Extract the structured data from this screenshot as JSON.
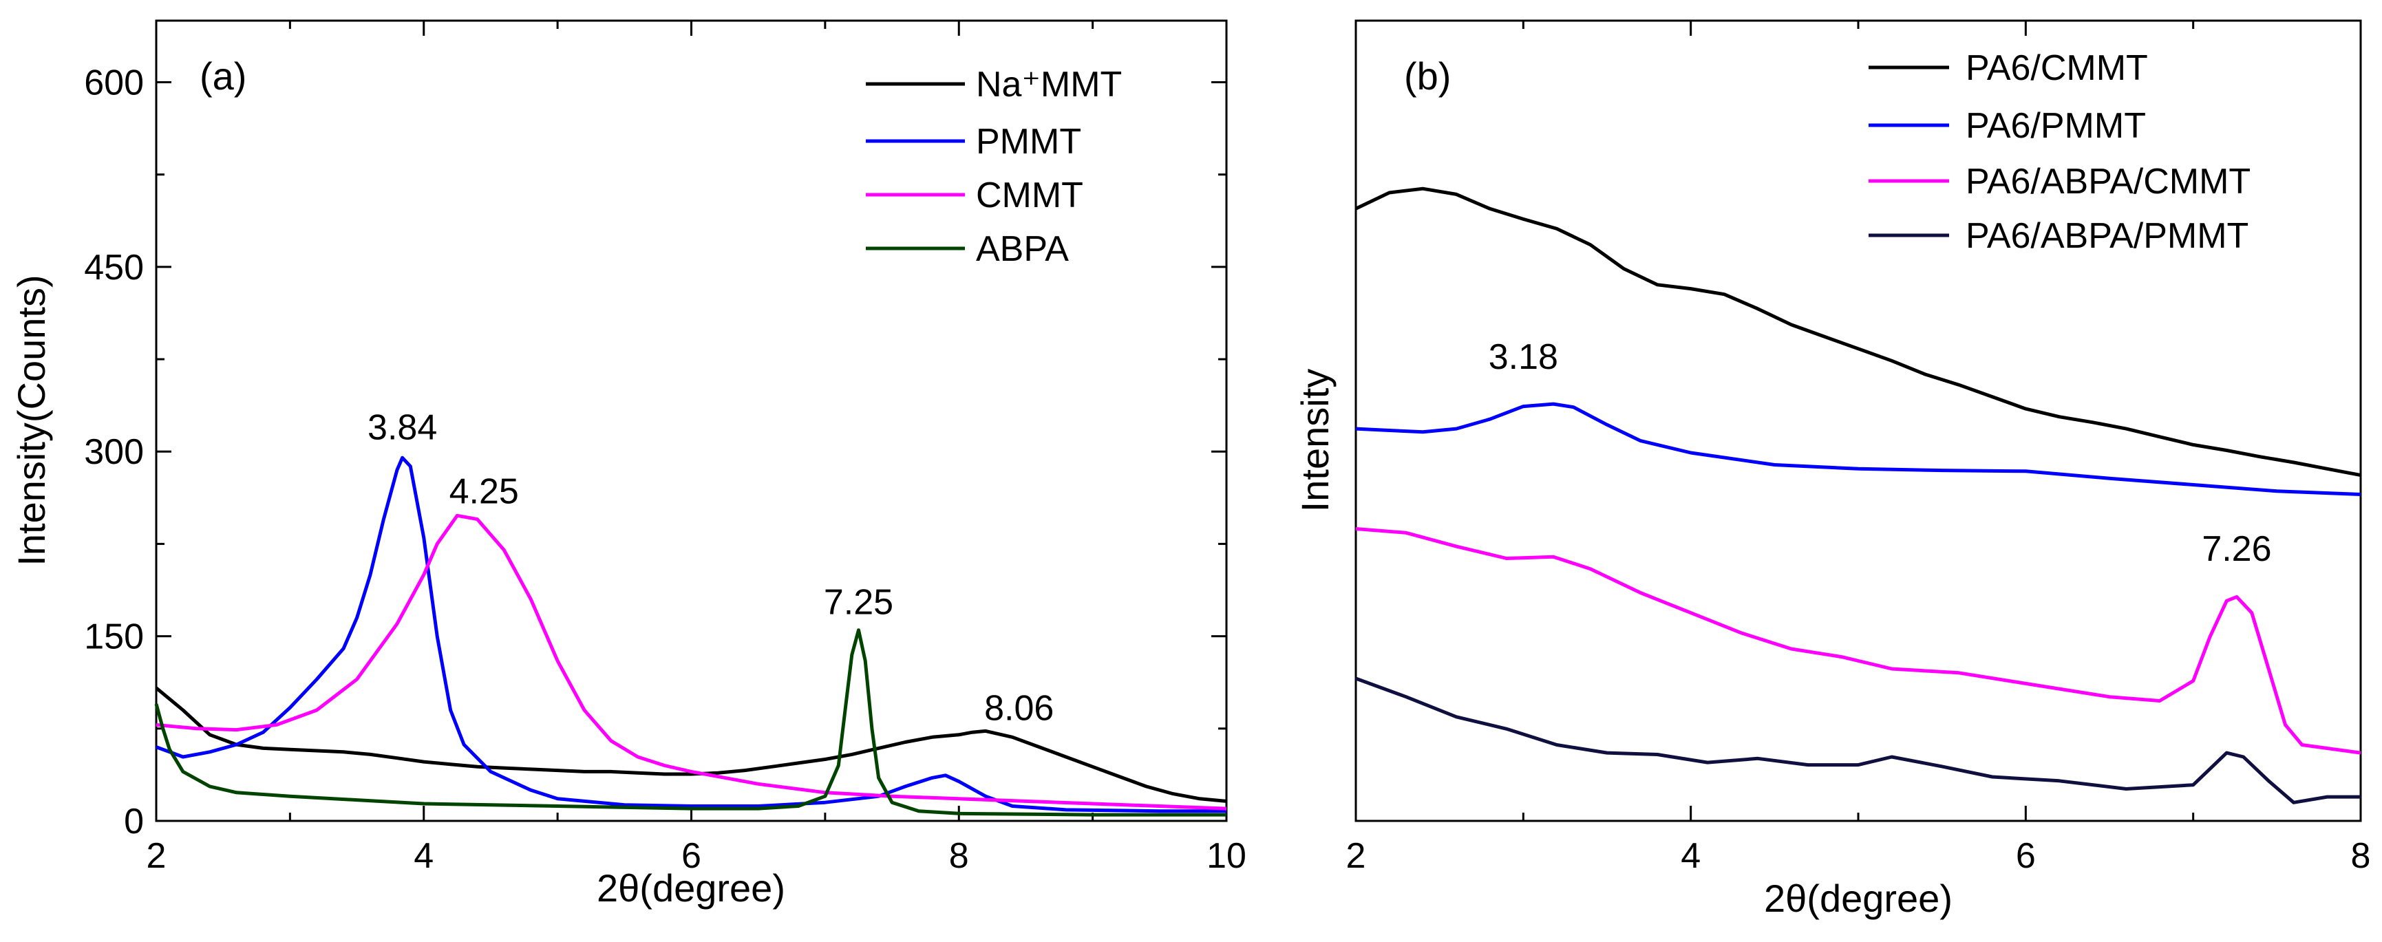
{
  "chart_data": [
    {
      "type": "line",
      "panel_label": "(a)",
      "xlabel": "2θ(degree)",
      "ylabel": "Intensity(Counts)",
      "xlim": [
        2,
        10
      ],
      "ylim": [
        0,
        650
      ],
      "xticks": [
        2,
        4,
        6,
        8,
        10
      ],
      "xtick_labels": [
        "2",
        "4",
        "6",
        "8",
        "10"
      ],
      "yticks": [
        0,
        150,
        300,
        450,
        600
      ],
      "ytick_labels": [
        "0",
        "150",
        "300",
        "450",
        "600"
      ],
      "grid": false,
      "legend_position": "top-right",
      "series": [
        {
          "name": "Na⁺MMT",
          "color": "#000000",
          "points": [
            [
              2,
              108
            ],
            [
              2.2,
              90
            ],
            [
              2.4,
              70
            ],
            [
              2.6,
              62
            ],
            [
              2.8,
              59
            ],
            [
              3,
              58
            ],
            [
              3.2,
              57
            ],
            [
              3.4,
              56
            ],
            [
              3.6,
              54
            ],
            [
              3.8,
              51
            ],
            [
              4,
              48
            ],
            [
              4.2,
              46
            ],
            [
              4.4,
              44
            ],
            [
              4.6,
              43
            ],
            [
              4.8,
              42
            ],
            [
              5,
              41
            ],
            [
              5.2,
              40
            ],
            [
              5.4,
              40
            ],
            [
              5.6,
              39
            ],
            [
              5.8,
              38
            ],
            [
              6,
              38
            ],
            [
              6.2,
              39
            ],
            [
              6.4,
              41
            ],
            [
              6.6,
              44
            ],
            [
              6.8,
              47
            ],
            [
              7,
              50
            ],
            [
              7.2,
              54
            ],
            [
              7.4,
              59
            ],
            [
              7.6,
              64
            ],
            [
              7.8,
              68
            ],
            [
              8,
              70
            ],
            [
              8.1,
              72
            ],
            [
              8.2,
              73
            ],
            [
              8.4,
              68
            ],
            [
              8.6,
              60
            ],
            [
              8.8,
              52
            ],
            [
              9,
              44
            ],
            [
              9.2,
              36
            ],
            [
              9.4,
              28
            ],
            [
              9.6,
              22
            ],
            [
              9.8,
              18
            ],
            [
              10,
              16
            ]
          ]
        },
        {
          "name": "PMMT",
          "color": "#0000ff",
          "points": [
            [
              2,
              60
            ],
            [
              2.2,
              52
            ],
            [
              2.4,
              56
            ],
            [
              2.6,
              62
            ],
            [
              2.8,
              72
            ],
            [
              3,
              92
            ],
            [
              3.2,
              115
            ],
            [
              3.4,
              140
            ],
            [
              3.5,
              165
            ],
            [
              3.6,
              200
            ],
            [
              3.7,
              245
            ],
            [
              3.8,
              285
            ],
            [
              3.84,
              295
            ],
            [
              3.9,
              288
            ],
            [
              4,
              230
            ],
            [
              4.1,
              150
            ],
            [
              4.2,
              90
            ],
            [
              4.3,
              62
            ],
            [
              4.5,
              40
            ],
            [
              4.8,
              25
            ],
            [
              5,
              18
            ],
            [
              5.5,
              13
            ],
            [
              6,
              12
            ],
            [
              6.5,
              12
            ],
            [
              7,
              15
            ],
            [
              7.4,
              20
            ],
            [
              7.6,
              28
            ],
            [
              7.8,
              35
            ],
            [
              7.9,
              37
            ],
            [
              8,
              32
            ],
            [
              8.2,
              20
            ],
            [
              8.4,
              12
            ],
            [
              8.8,
              9
            ],
            [
              9.5,
              8
            ],
            [
              10,
              8
            ]
          ]
        },
        {
          "name": "CMMT",
          "color": "#ff00ff",
          "points": [
            [
              2,
              78
            ],
            [
              2.3,
              75
            ],
            [
              2.6,
              74
            ],
            [
              2.9,
              78
            ],
            [
              3.2,
              90
            ],
            [
              3.5,
              115
            ],
            [
              3.8,
              160
            ],
            [
              4,
              200
            ],
            [
              4.1,
              225
            ],
            [
              4.25,
              248
            ],
            [
              4.4,
              245
            ],
            [
              4.6,
              220
            ],
            [
              4.8,
              180
            ],
            [
              5,
              130
            ],
            [
              5.2,
              90
            ],
            [
              5.4,
              65
            ],
            [
              5.6,
              52
            ],
            [
              5.8,
              45
            ],
            [
              6,
              40
            ],
            [
              6.2,
              36
            ],
            [
              6.5,
              30
            ],
            [
              7,
              23
            ],
            [
              7.5,
              20
            ],
            [
              8,
              18
            ],
            [
              8.5,
              16
            ],
            [
              9,
              14
            ],
            [
              9.5,
              12
            ],
            [
              10,
              10
            ]
          ]
        },
        {
          "name": "ABPA",
          "color": "#004400",
          "points": [
            [
              2,
              95
            ],
            [
              2.05,
              75
            ],
            [
              2.1,
              58
            ],
            [
              2.2,
              40
            ],
            [
              2.4,
              28
            ],
            [
              2.6,
              23
            ],
            [
              3,
              20
            ],
            [
              3.5,
              17
            ],
            [
              4,
              14
            ],
            [
              5,
              12
            ],
            [
              6,
              10
            ],
            [
              6.5,
              10
            ],
            [
              6.8,
              12
            ],
            [
              7,
              20
            ],
            [
              7.1,
              45
            ],
            [
              7.15,
              90
            ],
            [
              7.2,
              135
            ],
            [
              7.25,
              155
            ],
            [
              7.3,
              130
            ],
            [
              7.35,
              75
            ],
            [
              7.4,
              35
            ],
            [
              7.5,
              15
            ],
            [
              7.7,
              8
            ],
            [
              8,
              6
            ],
            [
              9,
              5
            ],
            [
              10,
              5
            ]
          ]
        }
      ],
      "annotations": [
        {
          "text": "3.84",
          "x": 3.84,
          "y": 310
        },
        {
          "text": "4.25",
          "x": 4.45,
          "y": 258
        },
        {
          "text": "7.25",
          "x": 7.25,
          "y": 168
        },
        {
          "text": "8.06",
          "x": 8.45,
          "y": 82
        }
      ]
    },
    {
      "type": "line",
      "panel_label": "(b)",
      "xlabel": "2θ(degree)",
      "ylabel": "Intensity",
      "xlim": [
        2,
        8
      ],
      "ylim": [
        0,
        100
      ],
      "xticks": [
        2,
        4,
        6,
        8
      ],
      "xtick_labels": [
        "2",
        "4",
        "6",
        "8"
      ],
      "yticks": [],
      "ytick_labels": [],
      "grid": false,
      "legend_position": "top-right",
      "series": [
        {
          "name": "PA6/CMMT",
          "color": "#000000",
          "points": [
            [
              2,
              76.5
            ],
            [
              2.2,
              78.5
            ],
            [
              2.4,
              79
            ],
            [
              2.6,
              78.3
            ],
            [
              2.8,
              76.5
            ],
            [
              3,
              75.2
            ],
            [
              3.2,
              74
            ],
            [
              3.4,
              72
            ],
            [
              3.6,
              69
            ],
            [
              3.8,
              67
            ],
            [
              4,
              66.5
            ],
            [
              4.2,
              65.8
            ],
            [
              4.4,
              64
            ],
            [
              4.6,
              62
            ],
            [
              4.8,
              60.5
            ],
            [
              5,
              59
            ],
            [
              5.2,
              57.5
            ],
            [
              5.4,
              55.8
            ],
            [
              5.6,
              54.5
            ],
            [
              5.8,
              53
            ],
            [
              6,
              51.5
            ],
            [
              6.2,
              50.5
            ],
            [
              6.4,
              49.8
            ],
            [
              6.6,
              49
            ],
            [
              6.8,
              48
            ],
            [
              7,
              47
            ],
            [
              7.2,
              46.3
            ],
            [
              7.4,
              45.5
            ],
            [
              7.6,
              44.8
            ],
            [
              7.8,
              44
            ],
            [
              8,
              43.2
            ]
          ]
        },
        {
          "name": "PA6/PMMT",
          "color": "#0000ff",
          "points": [
            [
              2,
              49
            ],
            [
              2.2,
              48.8
            ],
            [
              2.4,
              48.6
            ],
            [
              2.6,
              49
            ],
            [
              2.8,
              50.2
            ],
            [
              3,
              51.8
            ],
            [
              3.18,
              52.1
            ],
            [
              3.3,
              51.7
            ],
            [
              3.5,
              49.5
            ],
            [
              3.7,
              47.5
            ],
            [
              4,
              46
            ],
            [
              4.5,
              44.5
            ],
            [
              5,
              44
            ],
            [
              5.5,
              43.8
            ],
            [
              6,
              43.7
            ],
            [
              6.5,
              42.8
            ],
            [
              7,
              42
            ],
            [
              7.5,
              41.2
            ],
            [
              8,
              40.8
            ]
          ]
        },
        {
          "name": "PA6/ABPA/CMMT",
          "color": "#ff00ff",
          "points": [
            [
              2,
              36.5
            ],
            [
              2.3,
              36
            ],
            [
              2.6,
              34.3
            ],
            [
              2.9,
              32.8
            ],
            [
              3.18,
              33
            ],
            [
              3.4,
              31.5
            ],
            [
              3.7,
              28.5
            ],
            [
              4,
              26
            ],
            [
              4.3,
              23.5
            ],
            [
              4.6,
              21.5
            ],
            [
              4.9,
              20.5
            ],
            [
              5.2,
              19
            ],
            [
              5.6,
              18.5
            ],
            [
              5.9,
              17.5
            ],
            [
              6.2,
              16.5
            ],
            [
              6.5,
              15.5
            ],
            [
              6.8,
              15
            ],
            [
              7,
              17.5
            ],
            [
              7.1,
              23
            ],
            [
              7.2,
              27.5
            ],
            [
              7.26,
              28
            ],
            [
              7.35,
              26
            ],
            [
              7.45,
              19
            ],
            [
              7.55,
              12
            ],
            [
              7.65,
              9.5
            ],
            [
              8,
              8.5
            ]
          ]
        },
        {
          "name": "PA6/ABPA/PMMT",
          "color": "#101040",
          "points": [
            [
              2,
              17.8
            ],
            [
              2.3,
              15.5
            ],
            [
              2.6,
              13
            ],
            [
              2.9,
              11.5
            ],
            [
              3.2,
              9.5
            ],
            [
              3.5,
              8.5
            ],
            [
              3.8,
              8.3
            ],
            [
              4.1,
              7.3
            ],
            [
              4.4,
              7.8
            ],
            [
              4.7,
              7
            ],
            [
              5,
              7
            ],
            [
              5.2,
              8
            ],
            [
              5.5,
              6.8
            ],
            [
              5.8,
              5.5
            ],
            [
              6.2,
              5
            ],
            [
              6.6,
              4
            ],
            [
              7,
              4.5
            ],
            [
              7.1,
              6.5
            ],
            [
              7.2,
              8.5
            ],
            [
              7.3,
              8
            ],
            [
              7.45,
              5
            ],
            [
              7.6,
              2.3
            ],
            [
              7.8,
              3
            ],
            [
              8,
              3
            ]
          ]
        }
      ],
      "annotations": [
        {
          "text": "3.18",
          "x": 3.0,
          "y": 56.5
        },
        {
          "text": "7.26",
          "x": 7.26,
          "y": 32.5
        }
      ]
    }
  ]
}
